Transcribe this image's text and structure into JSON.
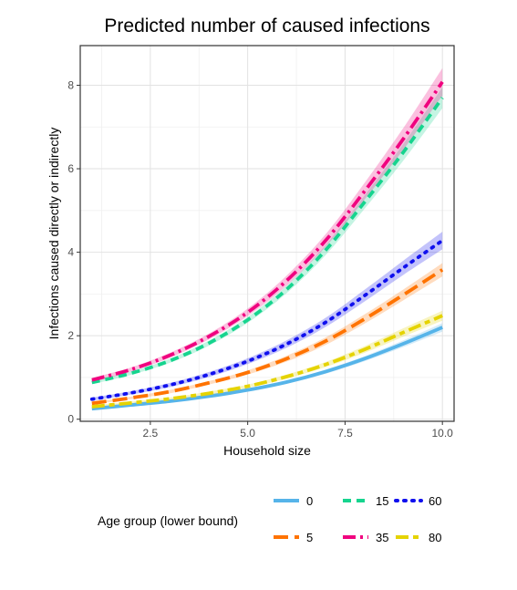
{
  "chart_data": {
    "type": "line",
    "title": "Predicted number of caused infections",
    "xlabel": "Household size",
    "ylabel": "Infections caused directly or indirectly",
    "xlim": [
      0.7,
      10.3
    ],
    "ylim": [
      -0.05,
      8.95
    ],
    "x_ticks": [
      2.5,
      5.0,
      7.5,
      10.0
    ],
    "x_tick_labels": [
      "2.5",
      "5.0",
      "7.5",
      "10.0"
    ],
    "y_ticks": [
      0,
      2,
      4,
      6,
      8
    ],
    "y_tick_labels": [
      "0",
      "2",
      "4",
      "6",
      "8"
    ],
    "grid": true,
    "legend": {
      "title": "Age group (lower bound)",
      "placement": "bottom",
      "entries": [
        "0",
        "15",
        "60",
        "5",
        "35",
        "80"
      ]
    },
    "x": [
      1,
      2,
      3,
      4,
      5,
      6,
      7,
      8,
      9,
      10
    ],
    "series": [
      {
        "name": "0",
        "color": "#56B4E9",
        "dash": "solid",
        "values": [
          0.25,
          0.34,
          0.43,
          0.55,
          0.7,
          0.89,
          1.14,
          1.45,
          1.81,
          2.2
        ],
        "band": [
          0.03,
          0.03,
          0.03,
          0.03,
          0.03,
          0.04,
          0.05,
          0.06,
          0.08,
          0.1
        ]
      },
      {
        "name": "15",
        "color": "#16D48E",
        "dash": "dashed",
        "values": [
          0.88,
          1.1,
          1.4,
          1.82,
          2.38,
          3.11,
          4.05,
          5.2,
          6.4,
          7.7
        ],
        "band": [
          0.04,
          0.04,
          0.05,
          0.06,
          0.07,
          0.09,
          0.12,
          0.16,
          0.2,
          0.25
        ]
      },
      {
        "name": "60",
        "color": "#1010EE",
        "dash": "dotted",
        "values": [
          0.48,
          0.63,
          0.82,
          1.07,
          1.39,
          1.8,
          2.32,
          2.96,
          3.63,
          4.28
        ],
        "band": [
          0.04,
          0.04,
          0.05,
          0.06,
          0.07,
          0.09,
          0.11,
          0.14,
          0.17,
          0.21
        ]
      },
      {
        "name": "5",
        "color": "#FF7300",
        "dash": "longdash",
        "values": [
          0.38,
          0.51,
          0.66,
          0.87,
          1.12,
          1.45,
          1.87,
          2.4,
          2.98,
          3.58
        ],
        "band": [
          0.03,
          0.03,
          0.04,
          0.04,
          0.05,
          0.07,
          0.09,
          0.11,
          0.13,
          0.16
        ]
      },
      {
        "name": "35",
        "color": "#F0037F",
        "dash": "dotdash",
        "values": [
          0.94,
          1.19,
          1.53,
          1.98,
          2.56,
          3.32,
          4.28,
          5.46,
          6.72,
          8.08
        ],
        "band": [
          0.05,
          0.05,
          0.06,
          0.07,
          0.09,
          0.12,
          0.15,
          0.2,
          0.26,
          0.33
        ]
      },
      {
        "name": "80",
        "color": "#E5D300",
        "dash": "twodash",
        "values": [
          0.3,
          0.39,
          0.49,
          0.62,
          0.79,
          1.02,
          1.31,
          1.67,
          2.08,
          2.48
        ],
        "band": [
          0.03,
          0.03,
          0.03,
          0.04,
          0.04,
          0.05,
          0.06,
          0.08,
          0.1,
          0.12
        ]
      }
    ]
  }
}
